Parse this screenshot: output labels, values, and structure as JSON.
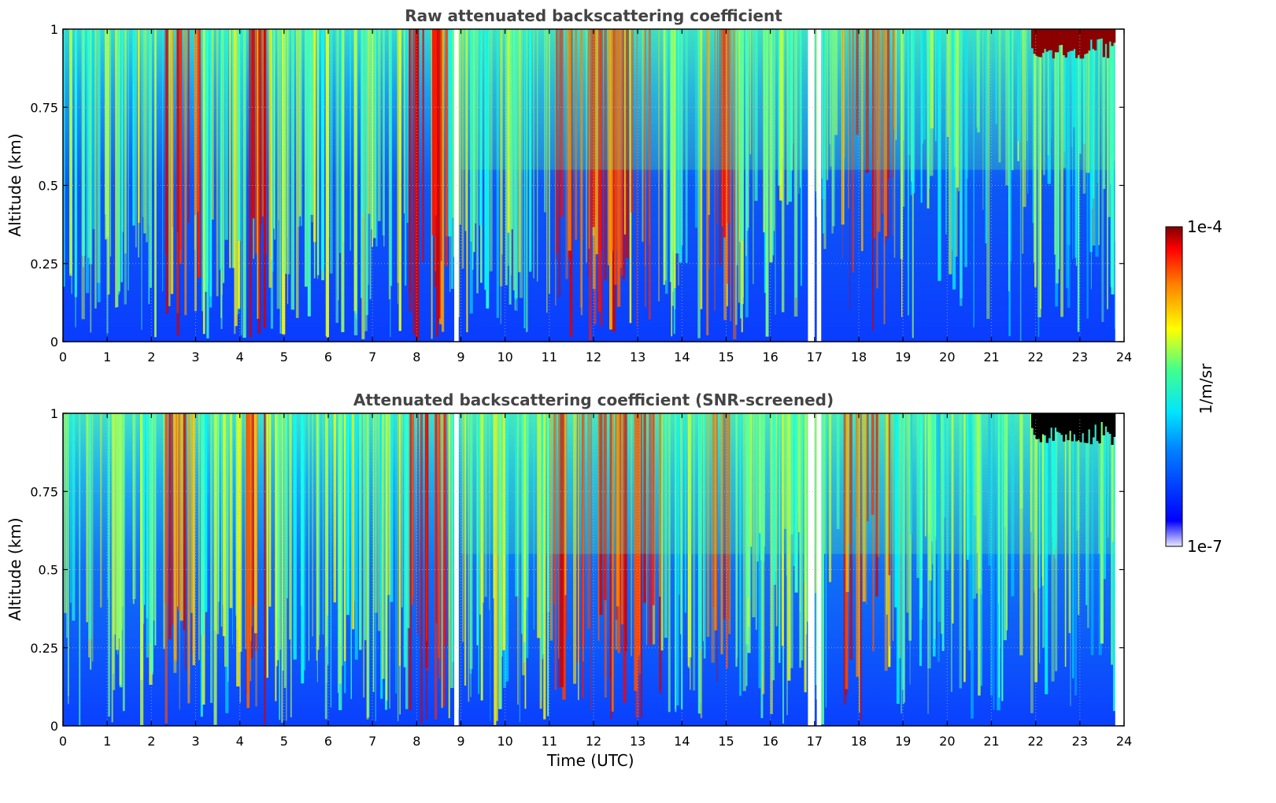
{
  "chart_data": [
    {
      "type": "heatmap",
      "title": "Raw attenuated backscattering coefficient",
      "ylabel": "Altitude (km)",
      "xlabel": "",
      "xlim": [
        0,
        24
      ],
      "ylim": [
        0,
        1
      ],
      "xticks": [
        "0",
        "1",
        "2",
        "3",
        "4",
        "5",
        "6",
        "7",
        "8",
        "9",
        "10",
        "11",
        "12",
        "13",
        "14",
        "15",
        "16",
        "17",
        "18",
        "19",
        "20",
        "21",
        "22",
        "23",
        "24"
      ],
      "yticks": [
        "0",
        "0.25",
        "0.5",
        "0.75",
        "1"
      ],
      "grid": true,
      "missing_data_gaps_utc": [
        [
          8.85,
          8.95
        ],
        [
          16.85,
          17.0
        ],
        [
          17.05,
          17.15
        ]
      ],
      "high_signal_region": {
        "x": [
          21.9,
          23.8
        ],
        "y": [
          0.92,
          1.0
        ],
        "description_color": "#8b0000"
      }
    },
    {
      "type": "heatmap",
      "title": "Attenuated backscattering coefficient (SNR-screened)",
      "ylabel": "Altitude (km)",
      "xlabel": "Time (UTC)",
      "xlim": [
        0,
        24
      ],
      "ylim": [
        0,
        1
      ],
      "xticks": [
        "0",
        "1",
        "2",
        "3",
        "4",
        "5",
        "6",
        "7",
        "8",
        "9",
        "10",
        "11",
        "12",
        "13",
        "14",
        "15",
        "16",
        "17",
        "18",
        "19",
        "20",
        "21",
        "22",
        "23",
        "24"
      ],
      "yticks": [
        "0",
        "0.25",
        "0.5",
        "0.75",
        "1"
      ],
      "grid": true,
      "missing_data_gaps_utc": [
        [
          8.85,
          8.95
        ],
        [
          16.85,
          17.0
        ],
        [
          17.05,
          17.15
        ]
      ],
      "screened_region": {
        "x": [
          21.9,
          23.8
        ],
        "y": [
          0.92,
          1.0
        ],
        "description_color": "#000000"
      }
    }
  ],
  "colorbar": {
    "max_label": "1e-4",
    "min_label": "1e-7",
    "unit_label": "1/m/sr",
    "colormap": "jet",
    "scale": "log"
  }
}
